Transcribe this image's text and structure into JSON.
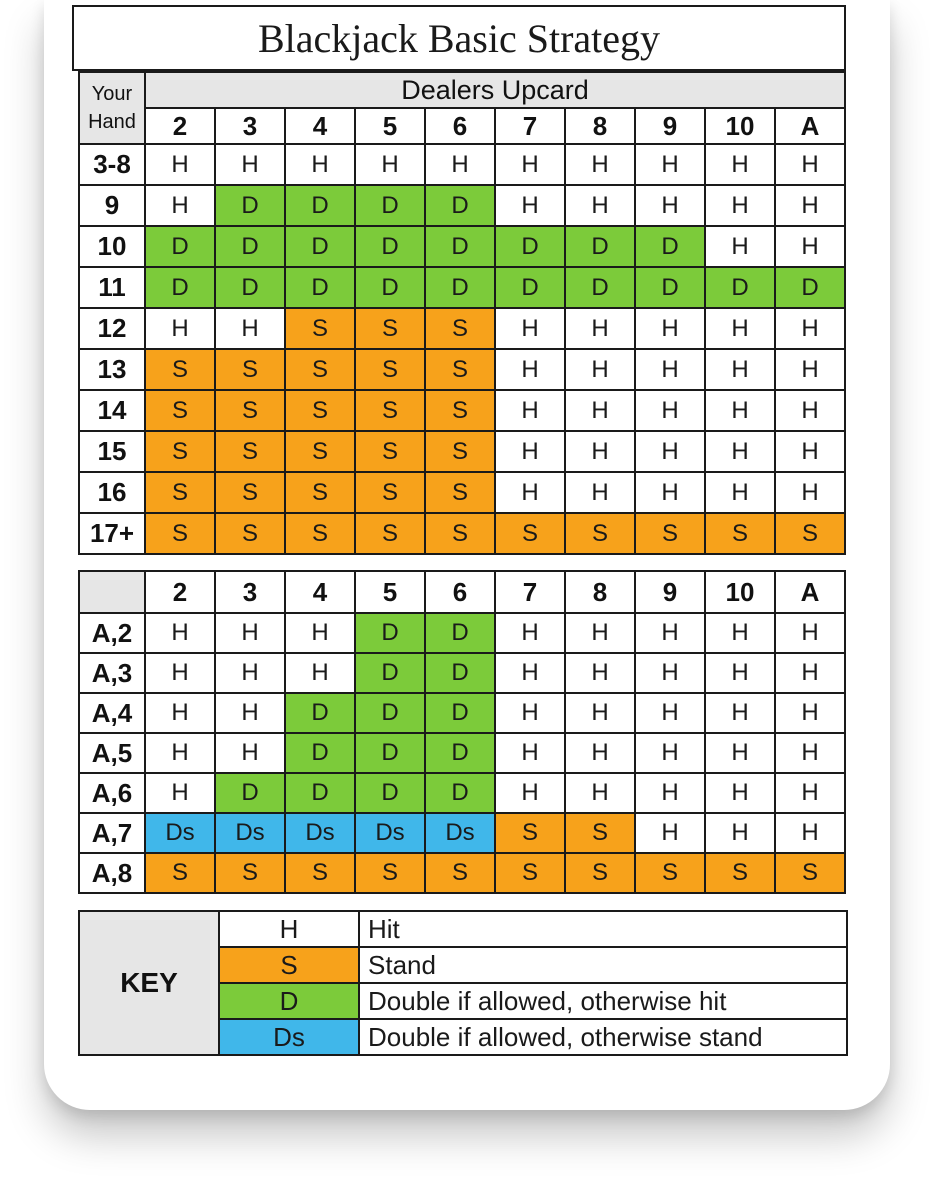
{
  "title": "Blackjack Basic Strategy",
  "hard": {
    "your_hand": "Your Hand",
    "dealers_upcard": "Dealers Upcard",
    "upcards": [
      "2",
      "3",
      "4",
      "5",
      "6",
      "7",
      "8",
      "9",
      "10",
      "A"
    ],
    "rows": [
      {
        "hand": "3-8",
        "cells": [
          "H",
          "H",
          "H",
          "H",
          "H",
          "H",
          "H",
          "H",
          "H",
          "H"
        ]
      },
      {
        "hand": "9",
        "cells": [
          "H",
          "D",
          "D",
          "D",
          "D",
          "H",
          "H",
          "H",
          "H",
          "H"
        ]
      },
      {
        "hand": "10",
        "cells": [
          "D",
          "D",
          "D",
          "D",
          "D",
          "D",
          "D",
          "D",
          "H",
          "H"
        ]
      },
      {
        "hand": "11",
        "cells": [
          "D",
          "D",
          "D",
          "D",
          "D",
          "D",
          "D",
          "D",
          "D",
          "D"
        ]
      },
      {
        "hand": "12",
        "cells": [
          "H",
          "H",
          "S",
          "S",
          "S",
          "H",
          "H",
          "H",
          "H",
          "H"
        ]
      },
      {
        "hand": "13",
        "cells": [
          "S",
          "S",
          "S",
          "S",
          "S",
          "H",
          "H",
          "H",
          "H",
          "H"
        ]
      },
      {
        "hand": "14",
        "cells": [
          "S",
          "S",
          "S",
          "S",
          "S",
          "H",
          "H",
          "H",
          "H",
          "H"
        ]
      },
      {
        "hand": "15",
        "cells": [
          "S",
          "S",
          "S",
          "S",
          "S",
          "H",
          "H",
          "H",
          "H",
          "H"
        ]
      },
      {
        "hand": "16",
        "cells": [
          "S",
          "S",
          "S",
          "S",
          "S",
          "H",
          "H",
          "H",
          "H",
          "H"
        ]
      },
      {
        "hand": "17+",
        "cells": [
          "S",
          "S",
          "S",
          "S",
          "S",
          "S",
          "S",
          "S",
          "S",
          "S"
        ]
      }
    ]
  },
  "soft": {
    "upcards": [
      "2",
      "3",
      "4",
      "5",
      "6",
      "7",
      "8",
      "9",
      "10",
      "A"
    ],
    "rows": [
      {
        "hand": "A,2",
        "cells": [
          "H",
          "H",
          "H",
          "D",
          "D",
          "H",
          "H",
          "H",
          "H",
          "H"
        ]
      },
      {
        "hand": "A,3",
        "cells": [
          "H",
          "H",
          "H",
          "D",
          "D",
          "H",
          "H",
          "H",
          "H",
          "H"
        ]
      },
      {
        "hand": "A,4",
        "cells": [
          "H",
          "H",
          "D",
          "D",
          "D",
          "H",
          "H",
          "H",
          "H",
          "H"
        ]
      },
      {
        "hand": "A,5",
        "cells": [
          "H",
          "H",
          "D",
          "D",
          "D",
          "H",
          "H",
          "H",
          "H",
          "H"
        ]
      },
      {
        "hand": "A,6",
        "cells": [
          "H",
          "D",
          "D",
          "D",
          "D",
          "H",
          "H",
          "H",
          "H",
          "H"
        ]
      },
      {
        "hand": "A,7",
        "cells": [
          "Ds",
          "Ds",
          "Ds",
          "Ds",
          "Ds",
          "S",
          "S",
          "H",
          "H",
          "H"
        ]
      },
      {
        "hand": "A,8",
        "cells": [
          "S",
          "S",
          "S",
          "S",
          "S",
          "S",
          "S",
          "S",
          "S",
          "S"
        ]
      }
    ]
  },
  "key": {
    "label": "KEY",
    "items": [
      {
        "symbol": "H",
        "meaning": "Hit"
      },
      {
        "symbol": "S",
        "meaning": "Stand"
      },
      {
        "symbol": "D",
        "meaning": "Double if allowed, otherwise hit"
      },
      {
        "symbol": "Ds",
        "meaning": "Double if allowed, otherwise stand"
      }
    ]
  },
  "colors": {
    "H": "#ffffff",
    "S": "#f7a21b",
    "D": "#7ccb3a",
    "Ds": "#40b7ea",
    "border": "#1a1a1a",
    "label_bg": "#e6e6e6"
  }
}
